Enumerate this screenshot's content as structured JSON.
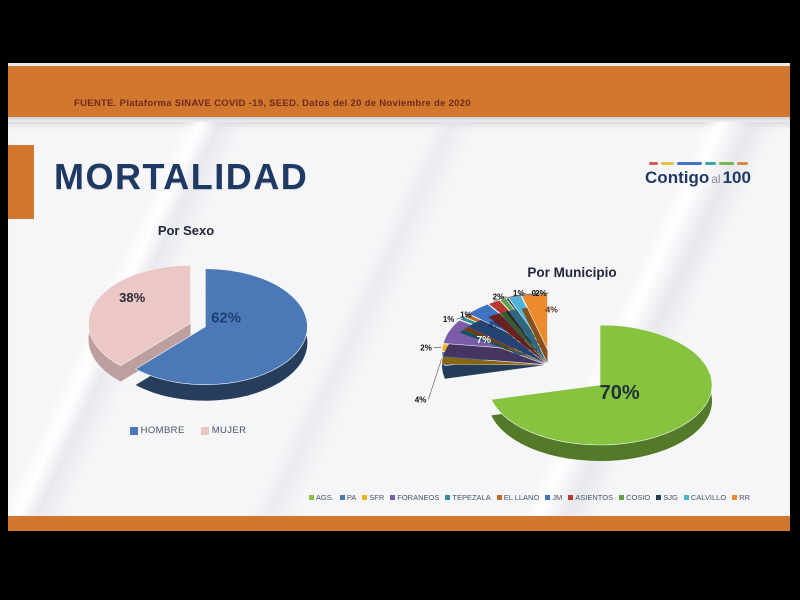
{
  "source_bar": {
    "text": "FUENTE. Plataforma SINAVE COVID -19, SEED. Datos del 20 de Noviembre de 2020"
  },
  "page_title": "MORTALIDAD",
  "logo": {
    "part1": "Contigo",
    "part2": "al",
    "part3": "100"
  },
  "colors": {
    "accent_orange": "#d1772e",
    "title_navy": "#1e3a64",
    "legend_text": "#44546a"
  },
  "chart_data": [
    {
      "type": "pie",
      "title": "Por Sexo",
      "legend_position": "bottom",
      "slices": [
        {
          "name": "HOMBRE",
          "value": 62,
          "label": "62%",
          "color": "#4b79b7"
        },
        {
          "name": "MUJER",
          "value": 38,
          "label": "38%",
          "color": "#ebc7c6"
        }
      ]
    },
    {
      "type": "pie",
      "title": "Por Municipio",
      "legend_position": "bottom",
      "slices": [
        {
          "name": "AGS.",
          "value": 70,
          "label": "70%",
          "color": "#86c440"
        },
        {
          "name": "PA",
          "value": 4,
          "label": "4%",
          "color": "#4878b0"
        },
        {
          "name": "SFR",
          "value": 2,
          "label": "2%",
          "color": "#edb21f"
        },
        {
          "name": "FORANEOS",
          "value": 7,
          "label": "7%",
          "color": "#7a5ca8"
        },
        {
          "name": "TEPEZALA",
          "value": 1,
          "label": "1%",
          "color": "#2e8c9e"
        },
        {
          "name": "EL LLANO",
          "value": 1,
          "label": "1%",
          "color": "#c06a22"
        },
        {
          "name": "JM",
          "value": 4,
          "label": "4%",
          "color": "#3e74c2"
        },
        {
          "name": "ASIENTOS",
          "value": 2,
          "label": "2%",
          "color": "#b53a32"
        },
        {
          "name": "COSIO",
          "value": 1,
          "label": "1%",
          "color": "#5fa049"
        },
        {
          "name": "SJG",
          "value": 0.4,
          "label": "0",
          "color": "#27415e"
        },
        {
          "name": "CALVILLO",
          "value": 2,
          "label": "2%",
          "color": "#4fb3d9"
        },
        {
          "name": "RR",
          "value": 4,
          "label": "4%",
          "color": "#ec8a2e"
        }
      ]
    }
  ]
}
